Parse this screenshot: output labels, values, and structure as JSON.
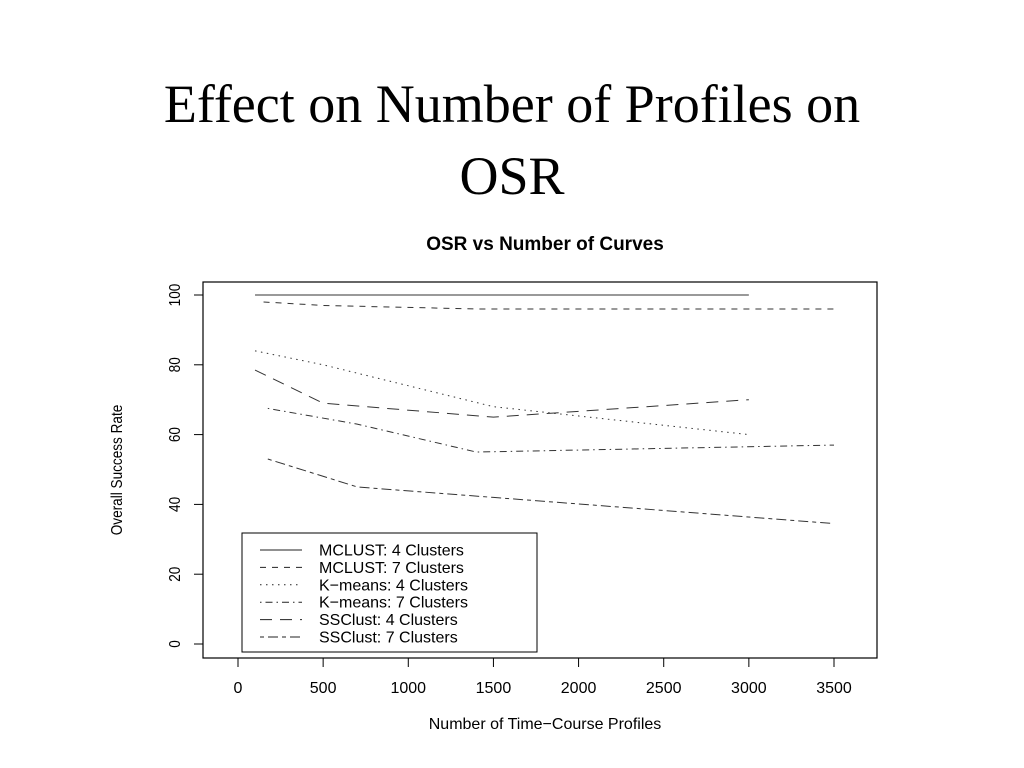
{
  "slide": {
    "title_line1": "Effect on Number of Profiles on",
    "title_line2": "OSR"
  },
  "chart_data": {
    "type": "line",
    "title": "OSR vs Number of Curves",
    "xlabel": "Number of Time−Course Profiles",
    "ylabel": "Overall Success Rate",
    "xlim": [
      0,
      3500
    ],
    "ylim": [
      0,
      100
    ],
    "xticks": [
      0,
      500,
      1000,
      1500,
      2000,
      2500,
      3000,
      3500
    ],
    "yticks": [
      0,
      20,
      40,
      60,
      80,
      100
    ],
    "grid": false,
    "legend_position": "bottom-left",
    "series": [
      {
        "name": "MCLUST: 4 Clusters",
        "dash": "solid",
        "x": [
          100,
          3000
        ],
        "y": [
          100,
          100
        ]
      },
      {
        "name": "MCLUST: 7 Clusters",
        "dash": "dashed",
        "x": [
          150,
          500,
          1400,
          3500
        ],
        "y": [
          98,
          97,
          96,
          96
        ]
      },
      {
        "name": "K−means: 4 Clusters",
        "dash": "dotted",
        "x": [
          100,
          500,
          1500,
          3000
        ],
        "y": [
          84,
          80,
          68,
          60
        ]
      },
      {
        "name": "K−means: 7 Clusters",
        "dash": "dotdash",
        "x": [
          175,
          700,
          1400,
          3500
        ],
        "y": [
          67.5,
          63,
          55,
          57
        ]
      },
      {
        "name": "SSClust: 4 Clusters",
        "dash": "longdash",
        "x": [
          100,
          500,
          1500,
          3000
        ],
        "y": [
          78.5,
          69,
          65,
          70
        ]
      },
      {
        "name": "SSClust: 7 Clusters",
        "dash": "twodash",
        "x": [
          175,
          700,
          1500,
          3500
        ],
        "y": [
          53,
          45,
          42,
          34.5
        ]
      }
    ]
  }
}
